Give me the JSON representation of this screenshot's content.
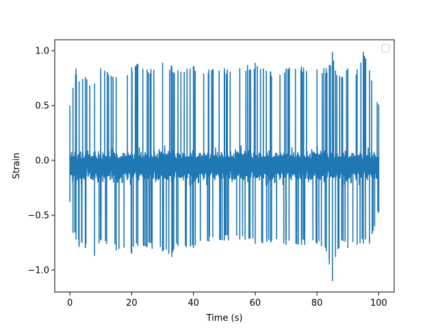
{
  "chart_data": {
    "type": "line",
    "title": "",
    "xlabel": "Time (s)",
    "ylabel": "Strain",
    "xlim": [
      -4.9,
      105.0
    ],
    "ylim": [
      -1.2,
      1.1
    ],
    "x_ticks": [
      0,
      20,
      40,
      60,
      80,
      100
    ],
    "x_tick_labels": [
      "0",
      "20",
      "40",
      "60",
      "80",
      "100"
    ],
    "y_ticks": [
      1.0,
      0.5,
      0.0,
      -0.5,
      -1.0
    ],
    "y_tick_labels": [
      "1.0",
      "0.5",
      "0.0",
      "−0.5",
      "−1.0"
    ],
    "grid": false,
    "legend": {
      "placement": "top-right",
      "entries": []
    },
    "series": [
      {
        "color": "#1f77b4",
        "x_range": [
          0,
          100
        ],
        "baseline": -0.05,
        "envelope": {
          "x": [
            0,
            1,
            2,
            3,
            5,
            8,
            10,
            15,
            20,
            22,
            25,
            30,
            33,
            35,
            40,
            45,
            50,
            55,
            60,
            65,
            70,
            75,
            80,
            83,
            84,
            85,
            86,
            88,
            90,
            93,
            95,
            97,
            100
          ],
          "max": [
            0.5,
            0.66,
            0.84,
            0.72,
            0.76,
            0.7,
            0.84,
            0.76,
            0.85,
            0.88,
            0.83,
            0.89,
            0.86,
            0.82,
            0.86,
            0.83,
            0.84,
            0.84,
            0.89,
            0.81,
            0.84,
            0.86,
            0.83,
            0.84,
            0.87,
            0.99,
            0.82,
            0.76,
            0.84,
            0.83,
            0.99,
            0.82,
            0.51
          ],
          "min": [
            -0.38,
            -0.66,
            -0.72,
            -0.79,
            -0.8,
            -0.87,
            -0.73,
            -0.82,
            -0.85,
            -0.78,
            -0.79,
            -0.83,
            -0.88,
            -0.78,
            -0.8,
            -0.74,
            -0.73,
            -0.72,
            -0.76,
            -0.75,
            -0.77,
            -0.77,
            -0.76,
            -0.83,
            -0.95,
            -1.1,
            -0.88,
            -0.73,
            -0.8,
            -0.77,
            -0.76,
            -0.76,
            -0.48
          ]
        }
      }
    ]
  }
}
